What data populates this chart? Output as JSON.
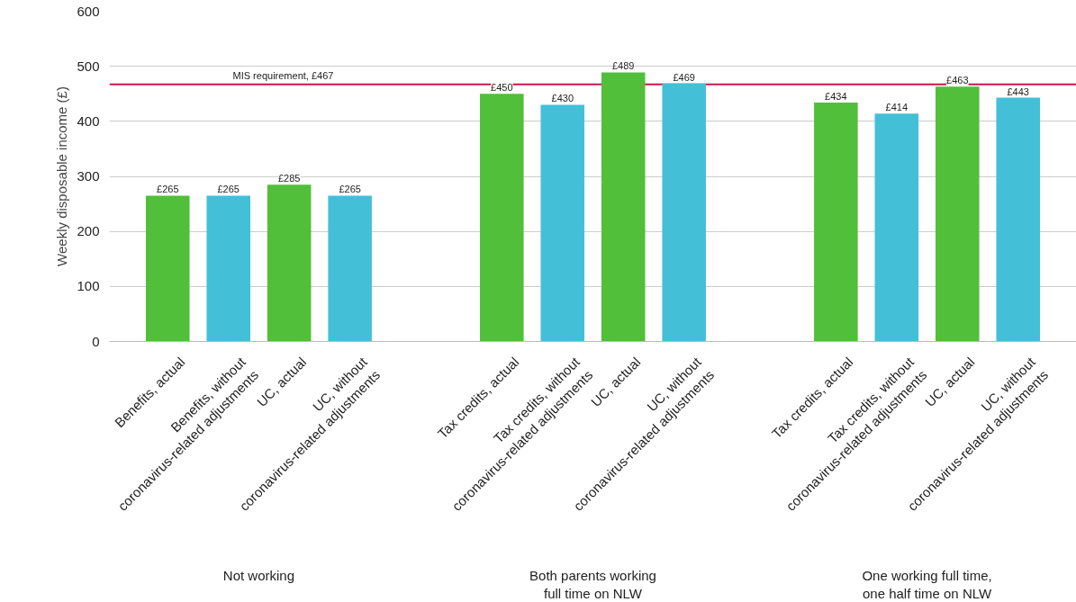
{
  "chart_data": {
    "type": "bar",
    "ylabel": "Weekly disposable income (£)",
    "categories": [
      "Benefits, actual",
      "Benefits, without\ncoronavirus-related adjustments",
      "UC, actual",
      "UC, without\ncoronavirus-related adjustments",
      "Tax credits, actual",
      "Tax credits, without\ncoronavirus-related adjustments",
      "UC, actual",
      "UC, without\ncoronavirus-related adjustments",
      "Tax credits, actual",
      "Tax credits, without\ncoronavirus-related adjustments",
      "UC, actual",
      "UC, without\ncoronavirus-related adjustments"
    ],
    "values": [
      265,
      265,
      285,
      265,
      450,
      430,
      489,
      469,
      434,
      414,
      463,
      443
    ],
    "value_labels": [
      "£265",
      "£265",
      "£285",
      "£265",
      "£450",
      "£430",
      "£489",
      "£469",
      "£434",
      "£414",
      "£463",
      "£443"
    ],
    "colors": [
      "#52bf3a",
      "#43c0d8",
      "#52bf3a",
      "#43c0d8",
      "#52bf3a",
      "#43c0d8",
      "#52bf3a",
      "#43c0d8",
      "#52bf3a",
      "#43c0d8",
      "#52bf3a",
      "#43c0d8"
    ],
    "ylim": [
      0,
      600
    ],
    "yticks": [
      0,
      100,
      200,
      300,
      400,
      500,
      600
    ],
    "grid": "y",
    "legend": false,
    "ref_lines": [
      {
        "axis": "y",
        "value": 467,
        "label": "MIS requirement, £467",
        "color": "#c8174f"
      }
    ],
    "annotations": [
      "Not working",
      "Both parents working\nfull time on NLW",
      "One working full time,\none half time on NLW"
    ]
  }
}
